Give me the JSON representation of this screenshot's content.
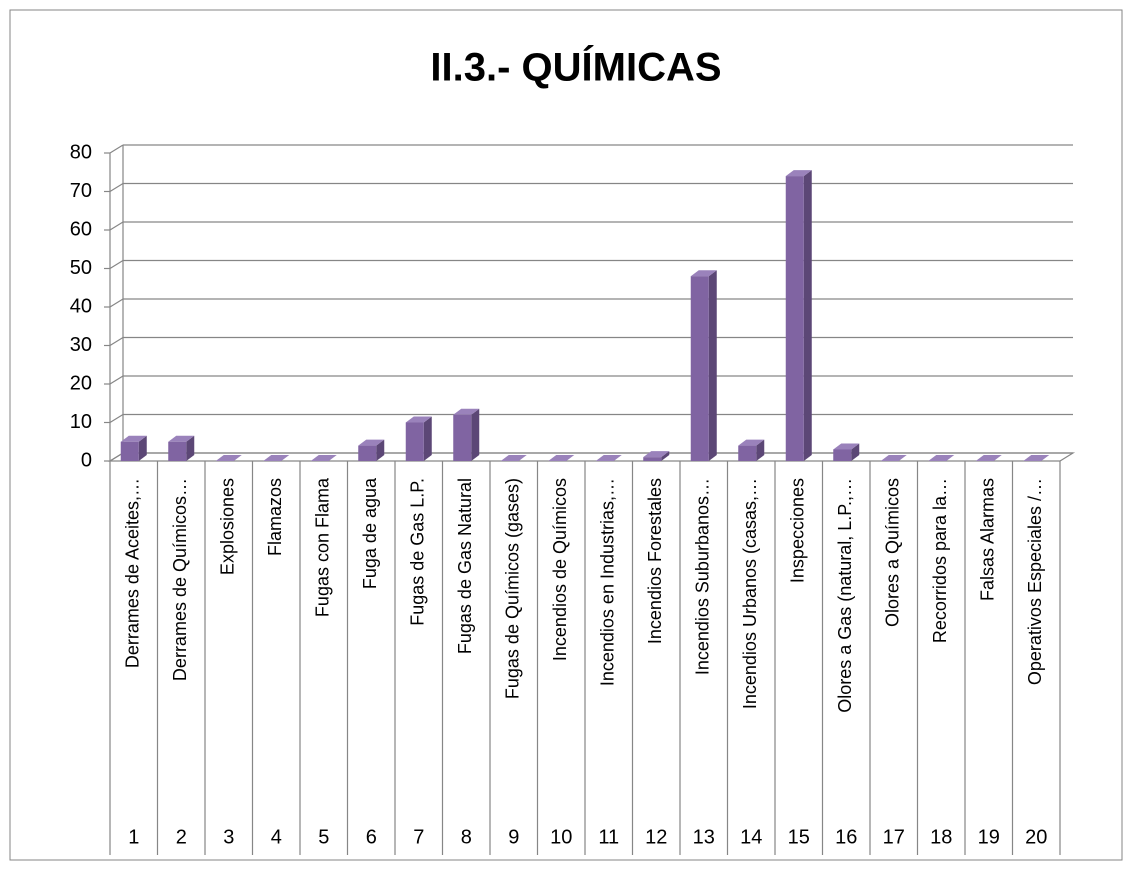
{
  "chart_data": {
    "type": "bar",
    "title": "II.3.- QUÍMICAS",
    "categories": [
      "Derrames de Aceites,…",
      "Derrames de Químicos…",
      "Explosiones",
      "Flamazos",
      "Fugas con Flama",
      "Fuga de agua",
      "Fugas de Gas L.P.",
      "Fugas de Gas Natural",
      "Fugas de Químicos (gases)",
      "Incendios de Químicos",
      "Incendios en Industrias,…",
      "Incendios Forestales",
      "Incendios Suburbanos…",
      "Incendios Urbanos (casas,…",
      "Inspecciones",
      "Olores a Gas (natural, L.P.,…",
      "Olores a Químicos",
      "Recorridos para la…",
      "Falsas Alarmas",
      "Operativos Especiales /…"
    ],
    "category_numbers": [
      1,
      2,
      3,
      4,
      5,
      6,
      7,
      8,
      9,
      10,
      11,
      12,
      13,
      14,
      15,
      16,
      17,
      18,
      19,
      20
    ],
    "values": [
      5,
      5,
      0,
      0,
      0,
      4,
      10,
      12,
      0,
      0,
      0,
      1,
      48,
      4,
      74,
      3,
      0,
      0,
      0,
      0
    ],
    "color": "#8064a2",
    "ylim": [
      0,
      80
    ],
    "yticks": [
      0,
      10,
      20,
      30,
      40,
      50,
      60,
      70,
      80
    ],
    "grid": true
  }
}
